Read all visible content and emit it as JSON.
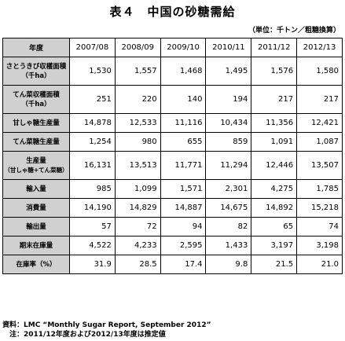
{
  "title": "表４　中国の砂糖需給",
  "unit": "（単位：千トン／粗糖換算）",
  "header": {
    "label": "年度",
    "years": [
      "2007/08",
      "2008/09",
      "2009/10",
      "2010/11",
      "2011/12",
      "2012/13"
    ]
  },
  "rows": [
    {
      "label1": "さとうきび収穫面積",
      "label2": "（千ha）",
      "values": [
        "1,530",
        "1,557",
        "1,468",
        "1,495",
        "1,576",
        "1,580"
      ]
    },
    {
      "label1": "てん菜収穫面積",
      "label2": "（千ha）",
      "values": [
        "251",
        "220",
        "140",
        "194",
        "217",
        "217"
      ]
    },
    {
      "label1": "甘しゃ糖生産量",
      "label2": "",
      "values": [
        "14,878",
        "12,533",
        "11,116",
        "10,434",
        "11,356",
        "12,421"
      ]
    },
    {
      "label1": "てん菜糖生産量",
      "label2": "",
      "values": [
        "1,254",
        "980",
        "655",
        "859",
        "1,091",
        "1,087"
      ]
    },
    {
      "label1": "生産量",
      "label2": "（甘しゃ糖+てん菜糖）",
      "values": [
        "16,131",
        "13,513",
        "11,771",
        "11,294",
        "12,446",
        "13,507"
      ]
    },
    {
      "label1": "輸入量",
      "label2": "",
      "values": [
        "985",
        "1,099",
        "1,571",
        "2,301",
        "4,275",
        "1,785"
      ]
    },
    {
      "label1": "消費量",
      "label2": "",
      "values": [
        "14,190",
        "14,829",
        "14,887",
        "14,675",
        "14,892",
        "15,218"
      ]
    },
    {
      "label1": "輸出量",
      "label2": "",
      "values": [
        "57",
        "72",
        "94",
        "82",
        "65",
        "74"
      ]
    },
    {
      "label1": "期末在庫量",
      "label2": "",
      "values": [
        "4,522",
        "4,233",
        "2,595",
        "1,433",
        "3,197",
        "3,198"
      ]
    },
    {
      "label1": "在庫率（%）",
      "label2": "",
      "values": [
        "31.9",
        "28.5",
        "17.4",
        "9.8",
        "21.5",
        "21.0"
      ]
    }
  ],
  "notes": {
    "source": "資料：LMC “Monthly Sugar Report, September 2012”",
    "note": "注：2011/12年度および2012/13年度は推定値"
  }
}
